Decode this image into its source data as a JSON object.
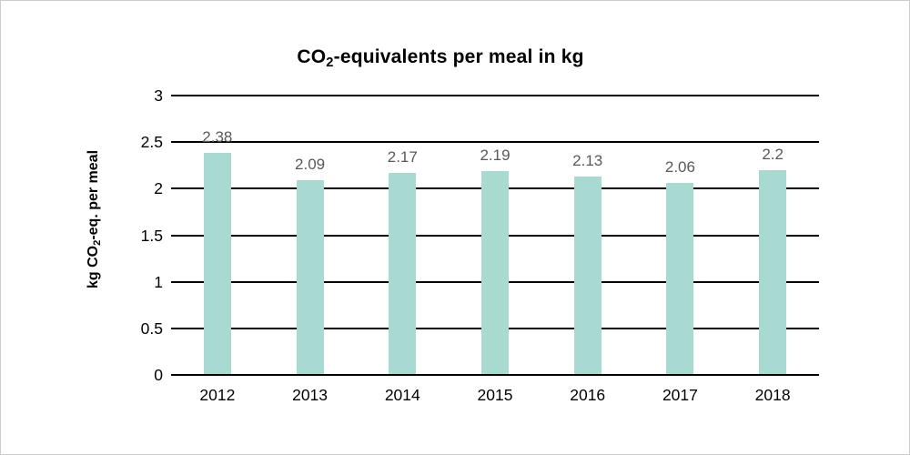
{
  "title": {
    "prefix": "CO",
    "sub": "2",
    "suffix": "-equivalents per meal in kg"
  },
  "ylabel": {
    "prefix": "kg CO",
    "sub": "2",
    "suffix": "-eq. per meal"
  },
  "chart_data": {
    "type": "bar",
    "title": "CO2-equivalents per meal in kg",
    "ylabel_text": "kg CO2-eq. per meal",
    "xlabel": "",
    "categories": [
      "2012",
      "2013",
      "2014",
      "2015",
      "2016",
      "2017",
      "2018"
    ],
    "values": [
      2.38,
      2.09,
      2.17,
      2.19,
      2.13,
      2.06,
      2.2
    ],
    "data_labels": [
      "2.38",
      "2.09",
      "2.17",
      "2.19",
      "2.13",
      "2.06",
      "2.2"
    ],
    "ylim": [
      0,
      3
    ],
    "ytick_step": 0.5,
    "yticks": [
      "0",
      "0.5",
      "1",
      "1.5",
      "2",
      "2.5",
      "3"
    ],
    "grid": true,
    "legend_position": "none",
    "bar_color": "#a9dad2",
    "label_color": "#595959",
    "axis_color": "#000000",
    "text_color": "#000000"
  }
}
